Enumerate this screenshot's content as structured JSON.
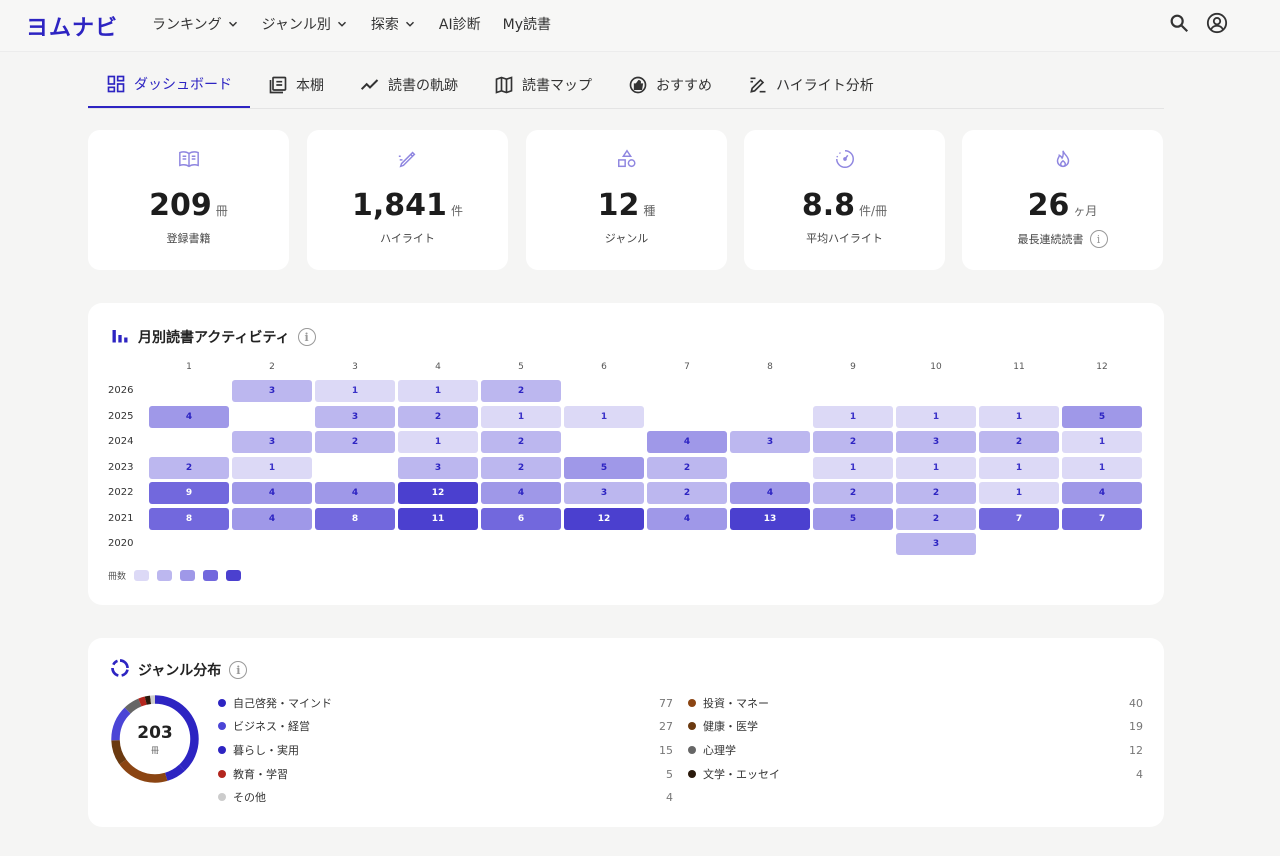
{
  "header": {
    "logo": "ヨムナビ",
    "nav": [
      {
        "label": "ランキング",
        "dropdown": true
      },
      {
        "label": "ジャンル別",
        "dropdown": true
      },
      {
        "label": "探索",
        "dropdown": true
      },
      {
        "label": "AI診断",
        "dropdown": false
      },
      {
        "label": "My読書",
        "dropdown": false
      }
    ]
  },
  "tabs": [
    {
      "label": "ダッシュボード",
      "icon": "dashboard-icon",
      "active": true
    },
    {
      "label": "本棚",
      "icon": "bookshelf-icon",
      "active": false
    },
    {
      "label": "読書の軌跡",
      "icon": "trend-icon",
      "active": false
    },
    {
      "label": "読書マップ",
      "icon": "map-icon",
      "active": false
    },
    {
      "label": "おすすめ",
      "icon": "recommend-icon",
      "active": false
    },
    {
      "label": "ハイライト分析",
      "icon": "highlight-icon",
      "active": false
    }
  ],
  "stats": [
    {
      "value": "209",
      "unit": "冊",
      "label": "登録書籍",
      "icon": "book-icon"
    },
    {
      "value": "1,841",
      "unit": "件",
      "label": "ハイライト",
      "icon": "pen-icon"
    },
    {
      "value": "12",
      "unit": "種",
      "label": "ジャンル",
      "icon": "shapes-icon"
    },
    {
      "value": "8.8",
      "unit": "件/冊",
      "label": "平均ハイライト",
      "icon": "gauge-icon"
    },
    {
      "value": "26",
      "unit": "ヶ月",
      "label": "最長連続読書",
      "icon": "flame-icon",
      "info": true
    }
  ],
  "activity": {
    "title": "月別読書アクティビティ",
    "months": [
      "1",
      "2",
      "3",
      "4",
      "5",
      "6",
      "7",
      "8",
      "9",
      "10",
      "11",
      "12"
    ],
    "years": [
      "2026",
      "2025",
      "2024",
      "2023",
      "2022",
      "2021",
      "2020"
    ],
    "grid": [
      [
        null,
        3,
        1,
        1,
        2,
        null,
        null,
        null,
        null,
        null,
        null,
        null
      ],
      [
        4,
        null,
        3,
        2,
        1,
        1,
        null,
        null,
        1,
        1,
        1,
        5
      ],
      [
        null,
        3,
        2,
        1,
        2,
        null,
        4,
        3,
        2,
        3,
        2,
        1
      ],
      [
        2,
        1,
        null,
        3,
        2,
        5,
        2,
        null,
        1,
        1,
        1,
        1
      ],
      [
        9,
        4,
        4,
        12,
        4,
        3,
        2,
        4,
        2,
        2,
        1,
        4
      ],
      [
        8,
        4,
        8,
        11,
        6,
        12,
        4,
        13,
        5,
        2,
        7,
        7
      ],
      [
        null,
        null,
        null,
        null,
        null,
        null,
        null,
        null,
        null,
        3,
        null,
        null
      ]
    ],
    "legend_label": "冊数",
    "palette": [
      "#dcd9f6",
      "#bcb7ef",
      "#9f98e8",
      "#7268dd",
      "#4b40cf"
    ]
  },
  "genre": {
    "title": "ジャンル分布",
    "total": "203",
    "total_unit": "冊",
    "left": [
      {
        "name": "自己啓発・マインド",
        "count": "77",
        "color": "#2d24c2"
      },
      {
        "name": "ビジネス・経営",
        "count": "27",
        "color": "#4b45d6"
      },
      {
        "name": "暮らし・実用",
        "count": "15",
        "color": "#2d24c2"
      },
      {
        "name": "教育・学習",
        "count": "5",
        "color": "#b3261e"
      },
      {
        "name": "その他",
        "count": "4",
        "color": "#cccccc"
      }
    ],
    "right": [
      {
        "name": "投資・マネー",
        "count": "40",
        "color": "#8b4513"
      },
      {
        "name": "健康・医学",
        "count": "19",
        "color": "#6b3a10"
      },
      {
        "name": "心理学",
        "count": "12",
        "color": "#666666"
      },
      {
        "name": "文学・エッセイ",
        "count": "4",
        "color": "#2a1a0c"
      }
    ]
  }
}
